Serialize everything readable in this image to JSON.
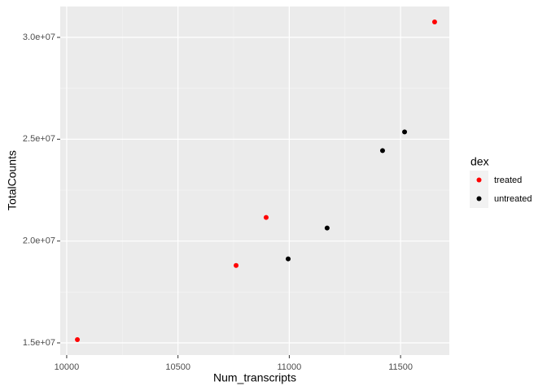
{
  "chart_data": {
    "type": "scatter",
    "x_label": "Num_transcripts",
    "y_label": "TotalCounts",
    "legend_title": "dex",
    "legend_position": "right",
    "grid": true,
    "xlim": [
      9971,
      11719
    ],
    "xticks": [
      10000,
      10500,
      11000,
      11500
    ],
    "ylim": [
      14402000,
      31516000
    ],
    "yticks": [
      {
        "value": 15000000,
        "label": "1.5e+07"
      },
      {
        "value": 20000000,
        "label": "2.0e+07"
      },
      {
        "value": 25000000,
        "label": "2.5e+07"
      },
      {
        "value": 30000000,
        "label": "3.0e+07"
      }
    ],
    "series": [
      {
        "name": "treated",
        "color": "#ff0000",
        "x": [
          10048,
          10761,
          10896,
          11653
        ],
        "values": [
          15160000,
          18800000,
          21157000,
          30758000
        ]
      },
      {
        "name": "untreated",
        "color": "#000000",
        "x": [
          10995,
          11170,
          11419,
          11518
        ],
        "values": [
          19122000,
          20638000,
          24441000,
          25359000
        ]
      }
    ]
  }
}
